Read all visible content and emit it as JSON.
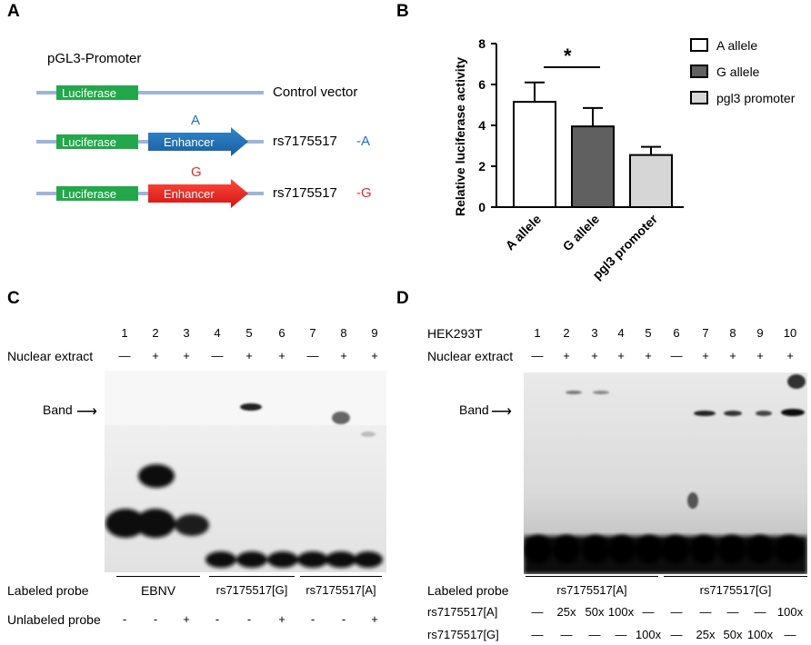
{
  "panelA": {
    "letter": "A",
    "title": "pGL3-Promoter",
    "luciferase": "Luciferase",
    "enhancer": "Enhancer",
    "control_label": "Control vector",
    "construct_a": {
      "snp": "rs7175517",
      "allele": "-A",
      "marker": "A",
      "color": "#1e6eb8"
    },
    "construct_g": {
      "snp": "rs7175517",
      "allele": "-G",
      "marker": "G",
      "color": "#e52b2b"
    },
    "colors": {
      "backbone": "#9db4dc",
      "luciferase": "#22a84a"
    }
  },
  "panelB": {
    "letter": "B",
    "significance": "*",
    "chart_data": {
      "type": "bar",
      "categories": [
        "A allele",
        "G allele",
        "pgl3 promoter"
      ],
      "values": [
        5.15,
        3.95,
        2.55
      ],
      "errors": [
        0.95,
        0.9,
        0.4
      ],
      "ylabel": "Relative luciferase activity",
      "ylim": [
        0,
        8
      ],
      "yticks": [
        "0",
        "2",
        "4",
        "6",
        "8"
      ],
      "legend": [
        "A allele",
        "G allele",
        "pgl3 promoter"
      ],
      "legend_position": "right",
      "bar_colors": [
        "#ffffff",
        "#606060",
        "#d6d6d6"
      ],
      "grid": false
    }
  },
  "panelC": {
    "letter": "C",
    "lanes": [
      "1",
      "2",
      "3",
      "4",
      "5",
      "6",
      "7",
      "8",
      "9"
    ],
    "nuclear_label": "Nuclear extract",
    "nuclear": [
      "—",
      "+",
      "+",
      "—",
      "+",
      "+",
      "—",
      "+",
      "+"
    ],
    "band_label": "Band",
    "labeled_probe_label": "Labeled probe",
    "groups": [
      "EBNV",
      "rs7175517[G]",
      "rs7175517[A]"
    ],
    "unlabeled_label": "Unlabeled probe",
    "unlabeled": [
      "-",
      "-",
      "+",
      "-",
      "-",
      "+",
      "-",
      "-",
      "+"
    ]
  },
  "panelD": {
    "letter": "D",
    "cell_label": "HEK293T",
    "lanes": [
      "1",
      "2",
      "3",
      "4",
      "5",
      "6",
      "7",
      "8",
      "9",
      "10"
    ],
    "nuclear_label": "Nuclear extract",
    "nuclear": [
      "—",
      "+",
      "+",
      "+",
      "+",
      "—",
      "+",
      "+",
      "+",
      "+"
    ],
    "band_label": "Band",
    "labeled_probe_label": "Labeled probe",
    "groups": [
      "rs7175517[A]",
      "rs7175517[G]"
    ],
    "row_a_label": "rs7175517[A]",
    "row_a": [
      "—",
      "25x",
      "50x",
      "100x",
      "—",
      "—",
      "—",
      "—",
      "—",
      "100x"
    ],
    "row_g_label": "rs7175517[G]",
    "row_g": [
      "—",
      "—",
      "—",
      "—",
      "100x",
      "—",
      "25x",
      "50x",
      "100x",
      "—"
    ]
  }
}
